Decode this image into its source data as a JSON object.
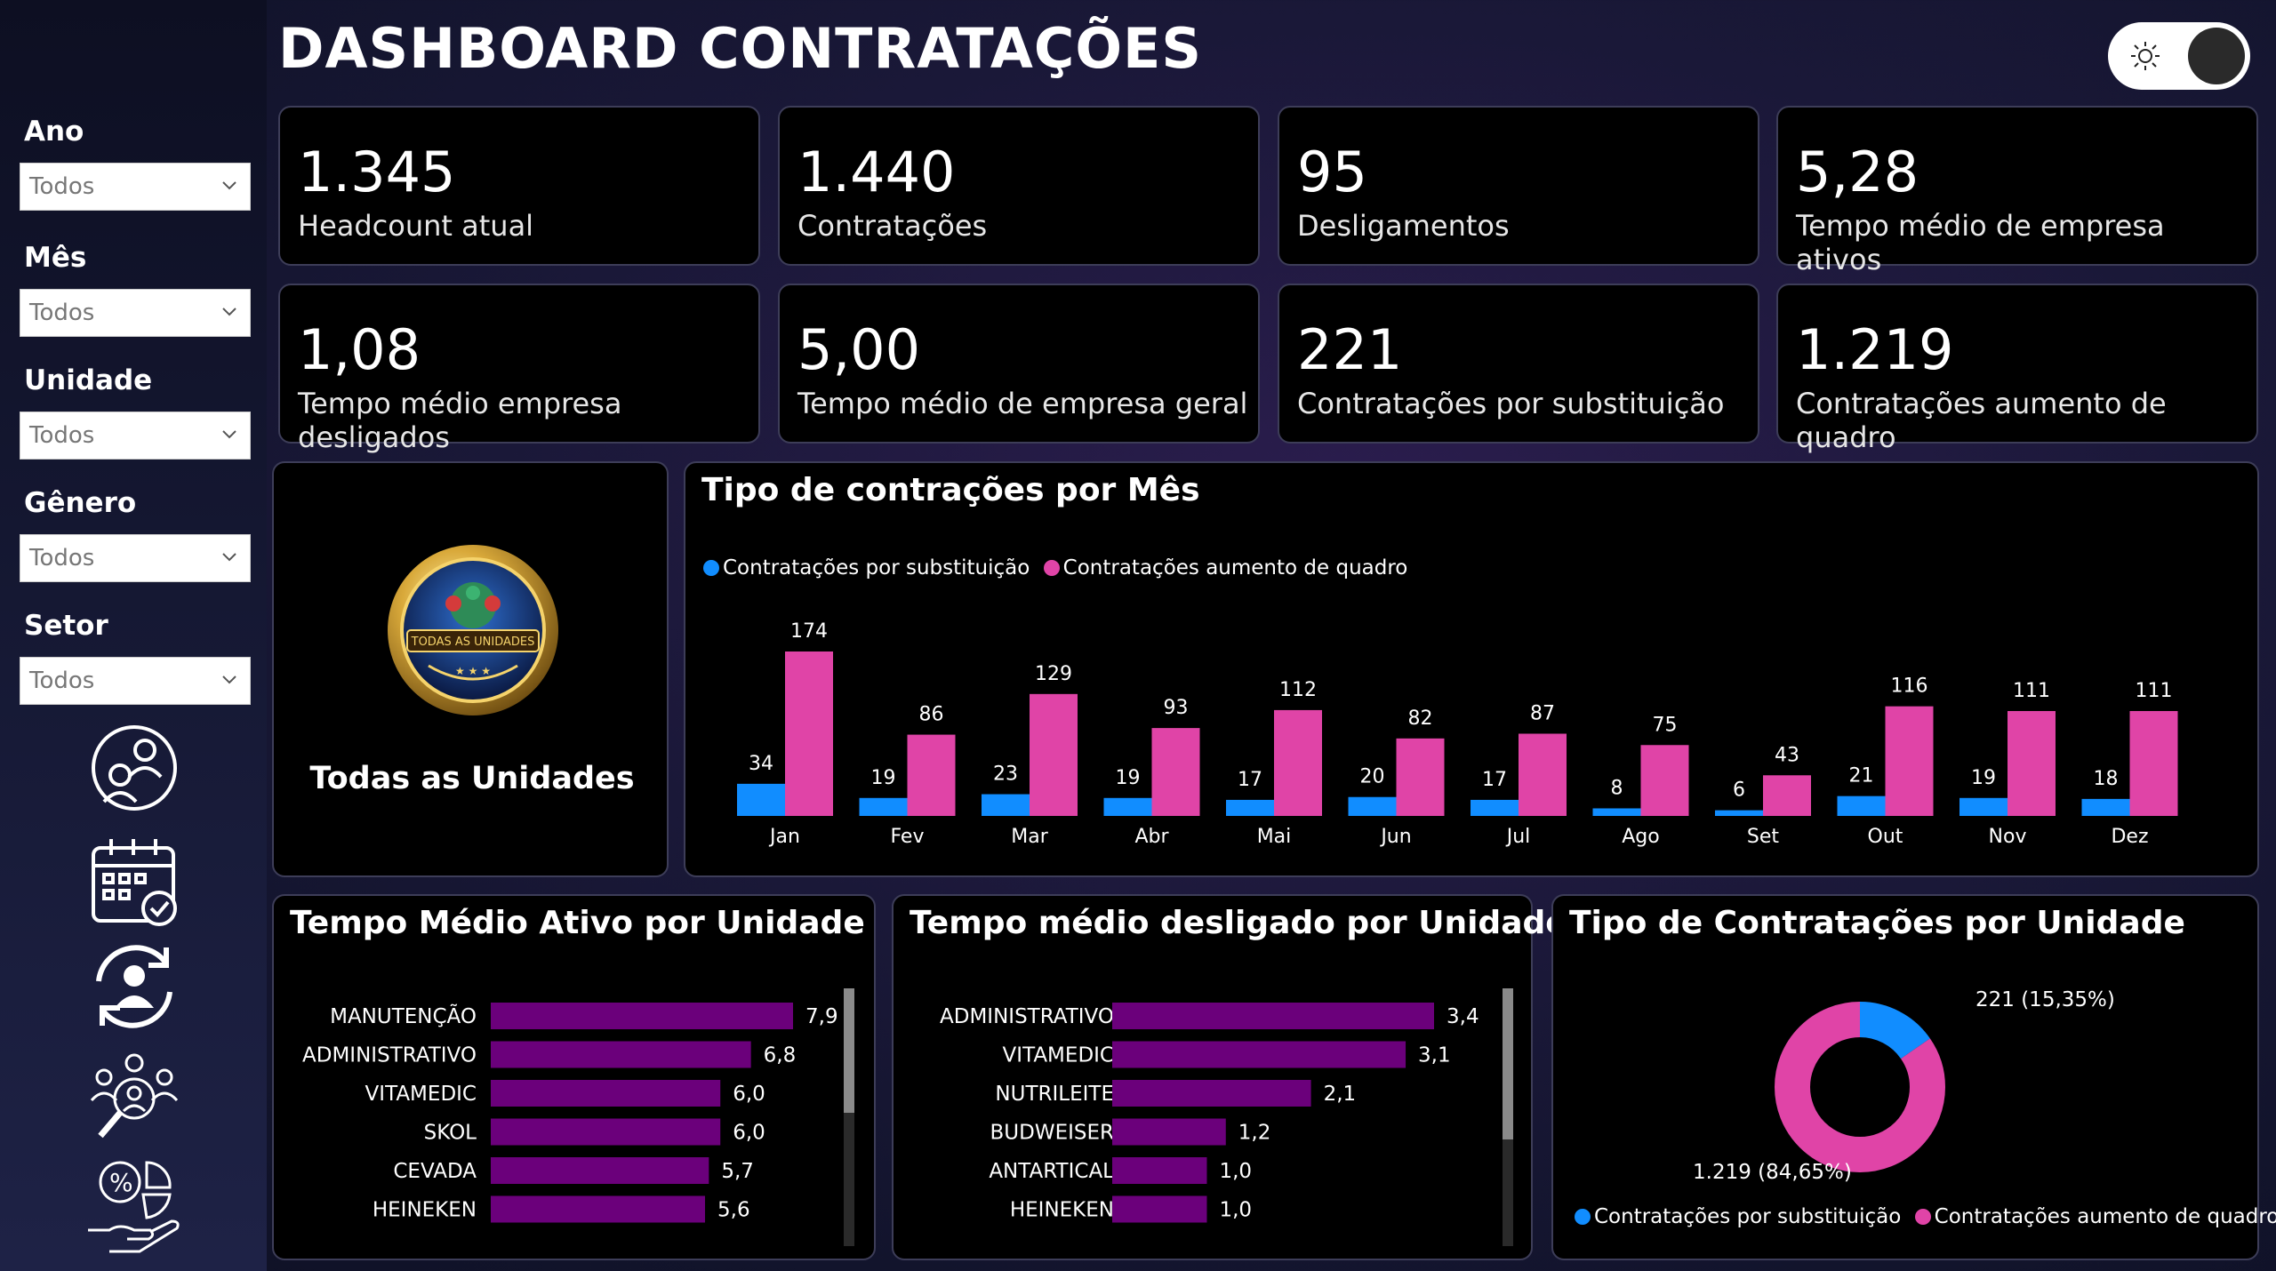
{
  "title": "DASHBOARD CONTRATAÇÕES",
  "colors": {
    "blue": "#118dff",
    "pink": "#e044a7",
    "purple": "#6b007b",
    "toggle_knob": "#2a2a2a"
  },
  "filters": [
    {
      "label": "Ano",
      "value": "Todos"
    },
    {
      "label": "Mês",
      "value": "Todos"
    },
    {
      "label": "Unidade",
      "value": "Todos"
    },
    {
      "label": "Gênero",
      "value": "Todos"
    },
    {
      "label": "Setor",
      "value": "Todos"
    }
  ],
  "nav_icons": [
    "people-cycle-icon",
    "calendar-check-icon",
    "person-sync-icon",
    "team-search-icon",
    "percent-hand-icon"
  ],
  "kpis": [
    {
      "value": "1.345",
      "label": "Headcount atual"
    },
    {
      "value": "1.440",
      "label": "Contratações"
    },
    {
      "value": "95",
      "label": "Desligamentos"
    },
    {
      "value": "5,28",
      "label": "Tempo médio de empresa ativos"
    },
    {
      "value": "1,08",
      "label": "Tempo médio empresa desligados"
    },
    {
      "value": "5,00",
      "label": "Tempo médio de empresa geral"
    },
    {
      "value": "221",
      "label": "Contratações por substituição"
    },
    {
      "value": "1.219",
      "label": "Contratações aumento de quadro"
    }
  ],
  "unit_card": {
    "badge_text": "TODAS AS UNIDADES",
    "label": "Todas as Unidades"
  },
  "chart_data": [
    {
      "type": "bar",
      "title": "Tipo de contrações por Mês",
      "categories": [
        "Jan",
        "Fev",
        "Mar",
        "Abr",
        "Mai",
        "Jun",
        "Jul",
        "Ago",
        "Set",
        "Out",
        "Nov",
        "Dez"
      ],
      "series": [
        {
          "name": "Contratações por substituição",
          "values": [
            34,
            19,
            23,
            19,
            17,
            20,
            17,
            8,
            6,
            21,
            19,
            18
          ]
        },
        {
          "name": "Contratações aumento de quadro",
          "values": [
            174,
            86,
            129,
            93,
            112,
            82,
            87,
            75,
            43,
            116,
            111,
            111
          ]
        }
      ],
      "ylim": [
        0,
        174
      ],
      "legend": "top-left",
      "grid": false
    },
    {
      "type": "bar",
      "orientation": "horizontal",
      "title": "Tempo Médio Ativo por Unidade",
      "categories": [
        "MANUTENÇÃO",
        "ADMINISTRATIVO",
        "VITAMEDIC",
        "SKOL",
        "CEVADA",
        "HEINEKEN"
      ],
      "values": [
        7.9,
        6.8,
        6.0,
        6.0,
        5.7,
        5.6
      ],
      "labels": [
        "7,9",
        "6,8",
        "6,0",
        "6,0",
        "5,7",
        "5,6"
      ]
    },
    {
      "type": "bar",
      "orientation": "horizontal",
      "title": "Tempo médio desligado por Unidade",
      "categories": [
        "ADMINISTRATIVO",
        "VITAMEDIC",
        "NUTRILEITE",
        "BUDWEISER",
        "ANTARTICAL",
        "HEINEKEN"
      ],
      "values": [
        3.4,
        3.1,
        2.1,
        1.2,
        1.0,
        1.0
      ],
      "labels": [
        "3,4",
        "3,1",
        "2,1",
        "1,2",
        "1,0",
        "1,0"
      ]
    },
    {
      "type": "pie",
      "donut": true,
      "title": "Tipo de Contratações por Unidade",
      "categories": [
        "Contratações por substituição",
        "Contratações aumento de quadro"
      ],
      "values": [
        221,
        1219
      ],
      "labels": [
        "221 (15,35%)",
        "1.219 (84,65%)"
      ],
      "legend": "bottom"
    }
  ]
}
